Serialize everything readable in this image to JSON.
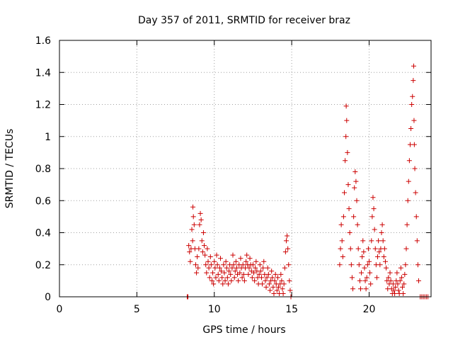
{
  "chart_data": {
    "type": "scatter",
    "title": "Day 357 of 2011, SRMTID for receiver braz",
    "xlabel": "GPS time / hours",
    "ylabel": "SRMTID / TECUs",
    "xlim": [
      0,
      24
    ],
    "ylim": [
      0,
      1.6
    ],
    "x_ticks": [
      0,
      5,
      10,
      15,
      20
    ],
    "x_tick_labels": [
      "0",
      "5",
      "10",
      "15",
      "20"
    ],
    "y_ticks": [
      0,
      0.2,
      0.4,
      0.6,
      0.8,
      1,
      1.2,
      1.4,
      1.6
    ],
    "y_tick_labels": [
      "0",
      "0.2",
      "0.4",
      "0.6",
      "0.8",
      "1",
      "1.2",
      "1.4",
      "1.6"
    ],
    "grid": true,
    "marker": "+",
    "series": [
      {
        "name": "SRMTID",
        "color": "#cc0000",
        "points": [
          [
            8.25,
            0.0
          ],
          [
            8.3,
            0.0
          ],
          [
            8.35,
            0.32
          ],
          [
            8.4,
            0.28
          ],
          [
            8.45,
            0.22
          ],
          [
            8.5,
            0.3
          ],
          [
            8.55,
            0.42
          ],
          [
            8.6,
            0.35
          ],
          [
            8.62,
            0.56
          ],
          [
            8.65,
            0.5
          ],
          [
            8.7,
            0.45
          ],
          [
            8.75,
            0.3
          ],
          [
            8.8,
            0.2
          ],
          [
            8.85,
            0.15
          ],
          [
            8.9,
            0.25
          ],
          [
            8.95,
            0.18
          ],
          [
            9.0,
            0.3
          ],
          [
            9.05,
            0.45
          ],
          [
            9.1,
            0.52
          ],
          [
            9.15,
            0.48
          ],
          [
            9.2,
            0.35
          ],
          [
            9.25,
            0.28
          ],
          [
            9.3,
            0.4
          ],
          [
            9.35,
            0.32
          ],
          [
            9.4,
            0.26
          ],
          [
            9.45,
            0.2
          ],
          [
            9.5,
            0.15
          ],
          [
            9.55,
            0.3
          ],
          [
            9.6,
            0.22
          ],
          [
            9.65,
            0.18
          ],
          [
            9.7,
            0.12
          ],
          [
            9.75,
            0.25
          ],
          [
            9.8,
            0.2
          ],
          [
            9.85,
            0.1
          ],
          [
            9.9,
            0.15
          ],
          [
            9.95,
            0.08
          ],
          [
            10.0,
            0.22
          ],
          [
            10.05,
            0.18
          ],
          [
            10.1,
            0.12
          ],
          [
            10.15,
            0.26
          ],
          [
            10.2,
            0.2
          ],
          [
            10.25,
            0.14
          ],
          [
            10.3,
            0.1
          ],
          [
            10.35,
            0.18
          ],
          [
            10.4,
            0.24
          ],
          [
            10.45,
            0.16
          ],
          [
            10.5,
            0.12
          ],
          [
            10.55,
            0.08
          ],
          [
            10.6,
            0.2
          ],
          [
            10.65,
            0.15
          ],
          [
            10.7,
            0.1
          ],
          [
            10.75,
            0.22
          ],
          [
            10.8,
            0.18
          ],
          [
            10.85,
            0.12
          ],
          [
            10.9,
            0.08
          ],
          [
            10.95,
            0.16
          ],
          [
            11.0,
            0.2
          ],
          [
            11.05,
            0.14
          ],
          [
            11.1,
            0.1
          ],
          [
            11.15,
            0.18
          ],
          [
            11.2,
            0.26
          ],
          [
            11.25,
            0.2
          ],
          [
            11.3,
            0.12
          ],
          [
            11.35,
            0.16
          ],
          [
            11.4,
            0.22
          ],
          [
            11.45,
            0.18
          ],
          [
            11.5,
            0.14
          ],
          [
            11.55,
            0.1
          ],
          [
            11.6,
            0.2
          ],
          [
            11.65,
            0.15
          ],
          [
            11.7,
            0.24
          ],
          [
            11.75,
            0.18
          ],
          [
            11.8,
            0.12
          ],
          [
            11.85,
            0.2
          ],
          [
            11.9,
            0.14
          ],
          [
            11.95,
            0.1
          ],
          [
            12.0,
            0.18
          ],
          [
            12.05,
            0.22
          ],
          [
            12.1,
            0.26
          ],
          [
            12.15,
            0.2
          ],
          [
            12.2,
            0.14
          ],
          [
            12.25,
            0.18
          ],
          [
            12.3,
            0.24
          ],
          [
            12.35,
            0.2
          ],
          [
            12.4,
            0.16
          ],
          [
            12.45,
            0.12
          ],
          [
            12.5,
            0.2
          ],
          [
            12.55,
            0.15
          ],
          [
            12.6,
            0.1
          ],
          [
            12.65,
            0.18
          ],
          [
            12.7,
            0.22
          ],
          [
            12.75,
            0.16
          ],
          [
            12.8,
            0.12
          ],
          [
            12.85,
            0.08
          ],
          [
            12.9,
            0.14
          ],
          [
            12.95,
            0.2
          ],
          [
            13.0,
            0.16
          ],
          [
            13.05,
            0.12
          ],
          [
            13.1,
            0.08
          ],
          [
            13.15,
            0.18
          ],
          [
            13.2,
            0.22
          ],
          [
            13.25,
            0.14
          ],
          [
            13.3,
            0.1
          ],
          [
            13.35,
            0.06
          ],
          [
            13.4,
            0.12
          ],
          [
            13.45,
            0.18
          ],
          [
            13.5,
            0.14
          ],
          [
            13.55,
            0.08
          ],
          [
            13.6,
            0.04
          ],
          [
            13.65,
            0.1
          ],
          [
            13.7,
            0.16
          ],
          [
            13.75,
            0.12
          ],
          [
            13.8,
            0.06
          ],
          [
            13.85,
            0.02
          ],
          [
            13.9,
            0.1
          ],
          [
            13.95,
            0.14
          ],
          [
            14.0,
            0.08
          ],
          [
            14.05,
            0.04
          ],
          [
            14.1,
            0.12
          ],
          [
            14.15,
            0.06
          ],
          [
            14.2,
            0.02
          ],
          [
            14.25,
            0.08
          ],
          [
            14.3,
            0.14
          ],
          [
            14.35,
            0.1
          ],
          [
            14.4,
            0.05
          ],
          [
            14.45,
            0.02
          ],
          [
            14.5,
            0.08
          ],
          [
            14.55,
            0.18
          ],
          [
            14.6,
            0.28
          ],
          [
            14.65,
            0.35
          ],
          [
            14.7,
            0.38
          ],
          [
            14.75,
            0.3
          ],
          [
            14.8,
            0.2
          ],
          [
            14.85,
            0.1
          ],
          [
            14.9,
            0.04
          ],
          [
            14.95,
            0.0
          ],
          [
            18.1,
            0.2
          ],
          [
            18.15,
            0.3
          ],
          [
            18.2,
            0.45
          ],
          [
            18.25,
            0.35
          ],
          [
            18.3,
            0.25
          ],
          [
            18.35,
            0.5
          ],
          [
            18.4,
            0.65
          ],
          [
            18.45,
            0.85
          ],
          [
            18.5,
            1.0
          ],
          [
            18.52,
            1.19
          ],
          [
            18.55,
            1.1
          ],
          [
            18.6,
            0.9
          ],
          [
            18.65,
            0.7
          ],
          [
            18.7,
            0.55
          ],
          [
            18.75,
            0.4
          ],
          [
            18.8,
            0.3
          ],
          [
            18.85,
            0.2
          ],
          [
            18.9,
            0.12
          ],
          [
            18.95,
            0.05
          ],
          [
            19.0,
            0.5
          ],
          [
            19.05,
            0.68
          ],
          [
            19.1,
            0.78
          ],
          [
            19.15,
            0.72
          ],
          [
            19.2,
            0.6
          ],
          [
            19.25,
            0.45
          ],
          [
            19.3,
            0.3
          ],
          [
            19.35,
            0.2
          ],
          [
            19.4,
            0.1
          ],
          [
            19.45,
            0.05
          ],
          [
            19.5,
            0.15
          ],
          [
            19.55,
            0.25
          ],
          [
            19.6,
            0.35
          ],
          [
            19.65,
            0.28
          ],
          [
            19.7,
            0.18
          ],
          [
            19.75,
            0.1
          ],
          [
            19.8,
            0.05
          ],
          [
            19.85,
            0.12
          ],
          [
            19.9,
            0.2
          ],
          [
            19.95,
            0.3
          ],
          [
            20.0,
            0.22
          ],
          [
            20.05,
            0.15
          ],
          [
            20.1,
            0.08
          ],
          [
            20.15,
            0.35
          ],
          [
            20.2,
            0.5
          ],
          [
            20.25,
            0.62
          ],
          [
            20.3,
            0.55
          ],
          [
            20.35,
            0.42
          ],
          [
            20.4,
            0.3
          ],
          [
            20.45,
            0.2
          ],
          [
            20.5,
            0.12
          ],
          [
            20.55,
            0.25
          ],
          [
            20.6,
            0.35
          ],
          [
            20.65,
            0.28
          ],
          [
            20.7,
            0.2
          ],
          [
            20.75,
            0.3
          ],
          [
            20.8,
            0.4
          ],
          [
            20.85,
            0.45
          ],
          [
            20.9,
            0.35
          ],
          [
            20.95,
            0.25
          ],
          [
            21.0,
            0.3
          ],
          [
            21.05,
            0.22
          ],
          [
            21.1,
            0.18
          ],
          [
            21.15,
            0.1
          ],
          [
            21.2,
            0.05
          ],
          [
            21.25,
            0.12
          ],
          [
            21.3,
            0.08
          ],
          [
            21.35,
            0.15
          ],
          [
            21.4,
            0.1
          ],
          [
            21.45,
            0.05
          ],
          [
            21.5,
            0.02
          ],
          [
            21.55,
            0.08
          ],
          [
            21.6,
            0.04
          ],
          [
            21.65,
            0.02
          ],
          [
            21.7,
            0.06
          ],
          [
            21.75,
            0.1
          ],
          [
            21.8,
            0.15
          ],
          [
            21.85,
            0.08
          ],
          [
            21.9,
            0.04
          ],
          [
            21.95,
            0.02
          ],
          [
            22.0,
            0.1
          ],
          [
            22.05,
            0.18
          ],
          [
            22.1,
            0.12
          ],
          [
            22.15,
            0.06
          ],
          [
            22.2,
            0.02
          ],
          [
            22.25,
            0.08
          ],
          [
            22.3,
            0.14
          ],
          [
            22.35,
            0.2
          ],
          [
            22.4,
            0.3
          ],
          [
            22.45,
            0.45
          ],
          [
            22.5,
            0.6
          ],
          [
            22.55,
            0.72
          ],
          [
            22.6,
            0.85
          ],
          [
            22.65,
            0.95
          ],
          [
            22.7,
            1.05
          ],
          [
            22.75,
            1.2
          ],
          [
            22.8,
            1.25
          ],
          [
            22.85,
            1.35
          ],
          [
            22.88,
            1.44
          ],
          [
            22.9,
            1.1
          ],
          [
            22.92,
            0.95
          ],
          [
            22.95,
            0.8
          ],
          [
            23.0,
            0.65
          ],
          [
            23.05,
            0.5
          ],
          [
            23.1,
            0.35
          ],
          [
            23.15,
            0.2
          ],
          [
            23.2,
            0.1
          ],
          [
            23.3,
            0.0
          ],
          [
            23.4,
            0.0
          ],
          [
            23.5,
            0.0
          ],
          [
            23.6,
            0.0
          ],
          [
            23.7,
            0.0
          ],
          [
            23.8,
            0.0
          ]
        ]
      }
    ]
  }
}
